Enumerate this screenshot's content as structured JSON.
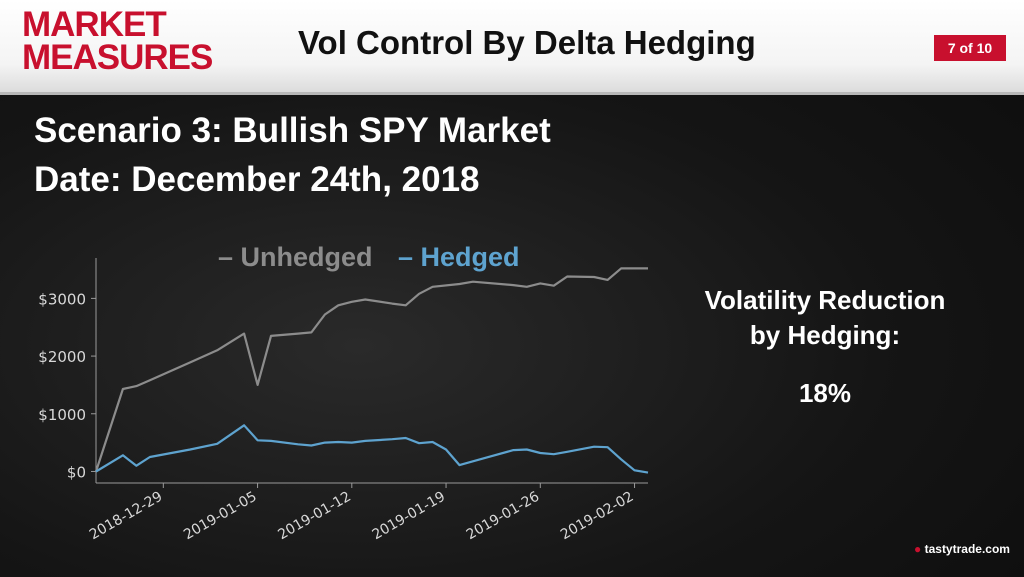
{
  "header": {
    "logo_line1": "MARKET",
    "logo_line2": "MEASURES",
    "title": "Vol Control By Delta Hedging",
    "page_indicator": "7 of 10"
  },
  "scenario": {
    "line1": "Scenario 3: Bullish SPY Market",
    "line2": "Date: December 24th, 2018"
  },
  "volatility": {
    "label_line1": "Volatility Reduction",
    "label_line2": "by Hedging:",
    "value": "18%"
  },
  "footer": {
    "brand": "tastytrade",
    "suffix": ".com"
  },
  "colors": {
    "logo_red": "#c8102e",
    "unhedged": "#8c8c8c",
    "hedged": "#5ea3cf",
    "axis_text": "#d8d8d8"
  },
  "chart_data": {
    "type": "line",
    "xlim": [
      "2018-12-24",
      "2019-02-03"
    ],
    "ylim": [
      -200,
      3700
    ],
    "yticks": [
      0,
      1000,
      2000,
      3000
    ],
    "ytick_labels": [
      "$0",
      "$1000",
      "$2000",
      "$3000"
    ],
    "xticks": [
      "2018-12-29",
      "2019-01-05",
      "2019-01-12",
      "2019-01-19",
      "2019-01-26",
      "2019-02-02"
    ],
    "legend": "top",
    "grid": false,
    "series": [
      {
        "name": "Unhedged",
        "color": "#8c8c8c",
        "points": [
          [
            "2018-12-24",
            0
          ],
          [
            "2018-12-26",
            1430
          ],
          [
            "2018-12-27",
            1480
          ],
          [
            "2018-12-28",
            1580
          ],
          [
            "2018-12-31",
            1890
          ],
          [
            "2019-01-02",
            2100
          ],
          [
            "2019-01-04",
            2390
          ],
          [
            "2019-01-05",
            1500
          ],
          [
            "2019-01-06",
            2350
          ],
          [
            "2019-01-08",
            2390
          ],
          [
            "2019-01-09",
            2410
          ],
          [
            "2019-01-10",
            2720
          ],
          [
            "2019-01-11",
            2880
          ],
          [
            "2019-01-12",
            2940
          ],
          [
            "2019-01-13",
            2980
          ],
          [
            "2019-01-15",
            2910
          ],
          [
            "2019-01-16",
            2880
          ],
          [
            "2019-01-17",
            3080
          ],
          [
            "2019-01-18",
            3200
          ],
          [
            "2019-01-20",
            3250
          ],
          [
            "2019-01-21",
            3290
          ],
          [
            "2019-01-24",
            3230
          ],
          [
            "2019-01-25",
            3200
          ],
          [
            "2019-01-26",
            3260
          ],
          [
            "2019-01-27",
            3220
          ],
          [
            "2019-01-28",
            3380
          ],
          [
            "2019-01-30",
            3370
          ],
          [
            "2019-01-31",
            3320
          ],
          [
            "2019-02-01",
            3520
          ],
          [
            "2019-02-03",
            3520
          ]
        ]
      },
      {
        "name": "Hedged",
        "color": "#5ea3cf",
        "points": [
          [
            "2018-12-24",
            0
          ],
          [
            "2018-12-26",
            280
          ],
          [
            "2018-12-27",
            100
          ],
          [
            "2018-12-28",
            250
          ],
          [
            "2018-12-31",
            380
          ],
          [
            "2019-01-02",
            480
          ],
          [
            "2019-01-04",
            800
          ],
          [
            "2019-01-05",
            540
          ],
          [
            "2019-01-06",
            530
          ],
          [
            "2019-01-08",
            470
          ],
          [
            "2019-01-09",
            450
          ],
          [
            "2019-01-10",
            500
          ],
          [
            "2019-01-11",
            510
          ],
          [
            "2019-01-12",
            500
          ],
          [
            "2019-01-13",
            530
          ],
          [
            "2019-01-15",
            560
          ],
          [
            "2019-01-16",
            580
          ],
          [
            "2019-01-17",
            490
          ],
          [
            "2019-01-18",
            510
          ],
          [
            "2019-01-19",
            380
          ],
          [
            "2019-01-20",
            110
          ],
          [
            "2019-01-22",
            240
          ],
          [
            "2019-01-24",
            370
          ],
          [
            "2019-01-25",
            380
          ],
          [
            "2019-01-26",
            320
          ],
          [
            "2019-01-27",
            300
          ],
          [
            "2019-01-28",
            340
          ],
          [
            "2019-01-30",
            430
          ],
          [
            "2019-01-31",
            420
          ],
          [
            "2019-02-01",
            210
          ],
          [
            "2019-02-02",
            20
          ],
          [
            "2019-02-03",
            -20
          ]
        ]
      }
    ]
  }
}
